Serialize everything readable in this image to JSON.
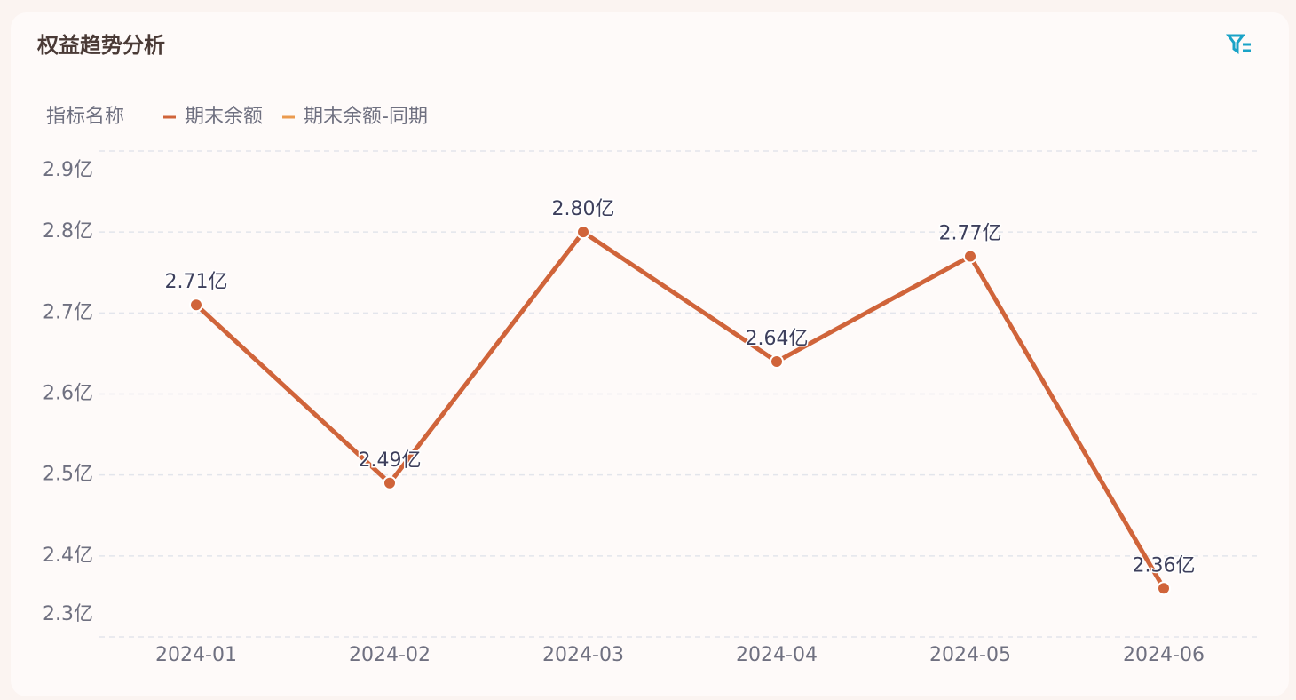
{
  "chart_data": {
    "type": "line",
    "title": "权益趋势分析",
    "legend_title": "指标名称",
    "categories": [
      "2024-01",
      "2024-02",
      "2024-03",
      "2024-04",
      "2024-05",
      "2024-06"
    ],
    "series": [
      {
        "name": "期末余额",
        "color": "#d0643a",
        "values": [
          2.71,
          2.49,
          2.8,
          2.64,
          2.77,
          2.36
        ],
        "value_labels": [
          "2.71亿",
          "2.49亿",
          "2.80亿",
          "2.64亿",
          "2.77亿",
          "2.36亿"
        ]
      },
      {
        "name": "期末余额-同期",
        "color": "#eb9a4e",
        "values": [
          null,
          null,
          null,
          null,
          null,
          null
        ]
      }
    ],
    "ylim": [
      2.3,
      2.9
    ],
    "yticks": [
      {
        "value": 2.3,
        "label": "2.3亿"
      },
      {
        "value": 2.4,
        "label": "2.4亿"
      },
      {
        "value": 2.5,
        "label": "2.5亿"
      },
      {
        "value": 2.6,
        "label": "2.6亿"
      },
      {
        "value": 2.7,
        "label": "2.7亿"
      },
      {
        "value": 2.8,
        "label": "2.8亿"
      },
      {
        "value": 2.9,
        "label": "2.9亿"
      }
    ],
    "grid": true,
    "legend": "top-left"
  }
}
